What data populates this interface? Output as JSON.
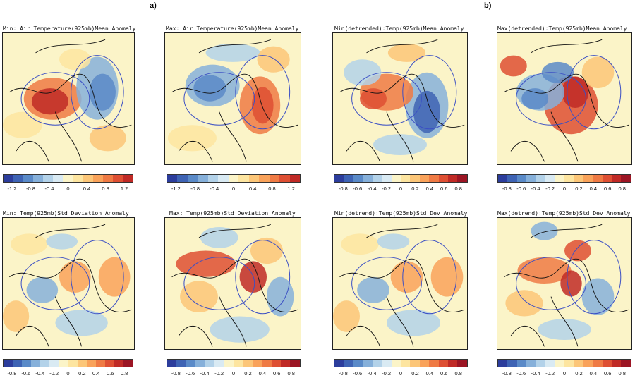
{
  "figure_labels": {
    "a": "a)",
    "b": "b)"
  },
  "colors": {
    "scale": [
      "#2c3d9c",
      "#3e63b4",
      "#5a8ac8",
      "#86b0da",
      "#b3d2e9",
      "#d9eaf3",
      "#fbf4c8",
      "#fde5a0",
      "#fcc678",
      "#f9a25a",
      "#ef7a44",
      "#de4f33",
      "#c02a26",
      "#9c1524"
    ],
    "land_line": "#111111",
    "contour": "#3b4fc4"
  },
  "panels": [
    {
      "title": "Min: Air Temperature(925mb)Mean Anomaly",
      "ticks": [
        "-1.2",
        "-0.8",
        "-0.4",
        "0",
        "0.4",
        "0.8",
        "1.2"
      ]
    },
    {
      "title": "Max: Air Temperature(925mb)Mean Anomaly",
      "ticks": [
        "-1.2",
        "-0.8",
        "-0.4",
        "0",
        "0.4",
        "0.8",
        "1.2"
      ]
    },
    {
      "title": "Min(detrended):Temp(925mb)Mean Anomaly",
      "ticks": [
        "-0.8",
        "-0.6",
        "-0.4",
        "-0.2",
        "0",
        "0.2",
        "0.4",
        "0.6",
        "0.8"
      ]
    },
    {
      "title": "Max(detrended):Temp(925mb)Mean Anomaly",
      "ticks": [
        "-0.8",
        "-0.6",
        "-0.4",
        "-0.2",
        "0",
        "0.2",
        "0.4",
        "0.6",
        "0.8"
      ]
    },
    {
      "title": "Min: Temp(925mb)Std Deviation Anomaly",
      "ticks": [
        "-0.8",
        "-0.6",
        "-0.4",
        "-0.2",
        "0",
        "0.2",
        "0.4",
        "0.6",
        "0.8"
      ]
    },
    {
      "title": "Max: Temp(925mb)Std Deviation Anomaly",
      "ticks": [
        "-0.8",
        "-0.6",
        "-0.4",
        "-0.2",
        "0",
        "0.2",
        "0.4",
        "0.6",
        "0.8"
      ]
    },
    {
      "title": "Min(detrend):Temp(925mb)Std Dev Anomaly",
      "ticks": [
        "-0.8",
        "-0.6",
        "-0.4",
        "-0.2",
        "0",
        "0.2",
        "0.4",
        "0.6",
        "0.8"
      ]
    },
    {
      "title": "Max(detrend):Temp(925mb)Std Dev Anomaly",
      "ticks": [
        "-0.8",
        "-0.6",
        "-0.4",
        "-0.2",
        "0",
        "0.2",
        "0.4",
        "0.6",
        "0.8"
      ]
    }
  ]
}
